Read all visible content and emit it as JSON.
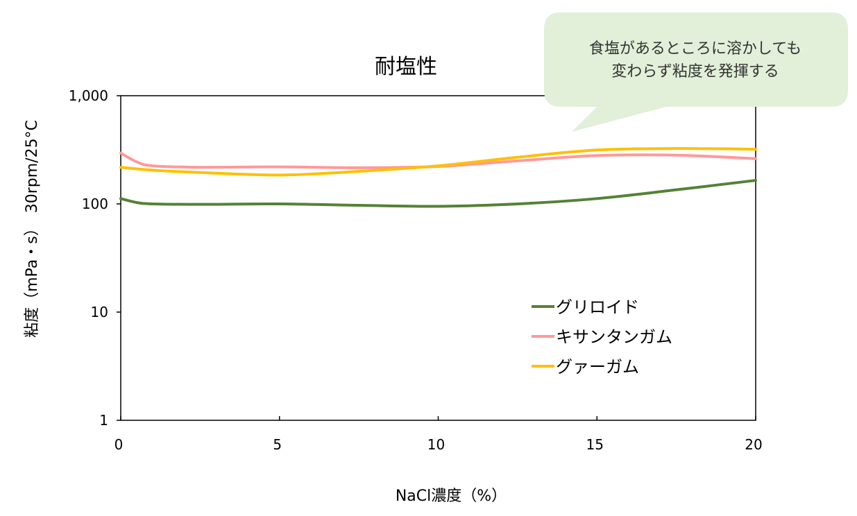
{
  "chart_data": {
    "type": "line",
    "title": "耐塩性",
    "xlabel": "NaCl濃度（%）",
    "ylabel": "粘度（mPa・s）　30rpm/25°C",
    "xlim": [
      0,
      20
    ],
    "ylim": [
      1,
      1000
    ],
    "yscale": "log",
    "x_ticks": [
      0,
      5,
      10,
      15,
      20
    ],
    "y_ticks": [
      1,
      10,
      100,
      1000
    ],
    "x_tick_labels": [
      "0",
      "5",
      "10",
      "15",
      "20"
    ],
    "y_tick_labels": [
      "1",
      "10",
      "100",
      "1,000"
    ],
    "grid": false,
    "legend_position": "bottom-right inside plot",
    "callout_lines": [
      "食塩があるところに溶かしても",
      "変わらず粘度を発揮する"
    ],
    "callout_color": "#e2efd9",
    "series": [
      {
        "name": "グリロイド",
        "color": "#548235",
        "points": [
          [
            0,
            112
          ],
          [
            0.5,
            103
          ],
          [
            1,
            100
          ],
          [
            2.5,
            99
          ],
          [
            5,
            100
          ],
          [
            7.5,
            97
          ],
          [
            10,
            95
          ],
          [
            12.5,
            100
          ],
          [
            15,
            112
          ],
          [
            17.5,
            135
          ],
          [
            20,
            165
          ]
        ]
      },
      {
        "name": "キサンタンガム",
        "color": "#ff9999",
        "points": [
          [
            0,
            295
          ],
          [
            0.5,
            245
          ],
          [
            1,
            225
          ],
          [
            2.5,
            218
          ],
          [
            5,
            220
          ],
          [
            7.5,
            216
          ],
          [
            10,
            222
          ],
          [
            12.5,
            250
          ],
          [
            15,
            280
          ],
          [
            17.5,
            282
          ],
          [
            20,
            262
          ]
        ]
      },
      {
        "name": "グァーガム",
        "color": "#ffc000",
        "points": [
          [
            0,
            218
          ],
          [
            1,
            205
          ],
          [
            2.5,
            195
          ],
          [
            5,
            185
          ],
          [
            7.5,
            200
          ],
          [
            10,
            225
          ],
          [
            12.5,
            270
          ],
          [
            15,
            315
          ],
          [
            17.5,
            325
          ],
          [
            20,
            320
          ]
        ]
      }
    ]
  }
}
